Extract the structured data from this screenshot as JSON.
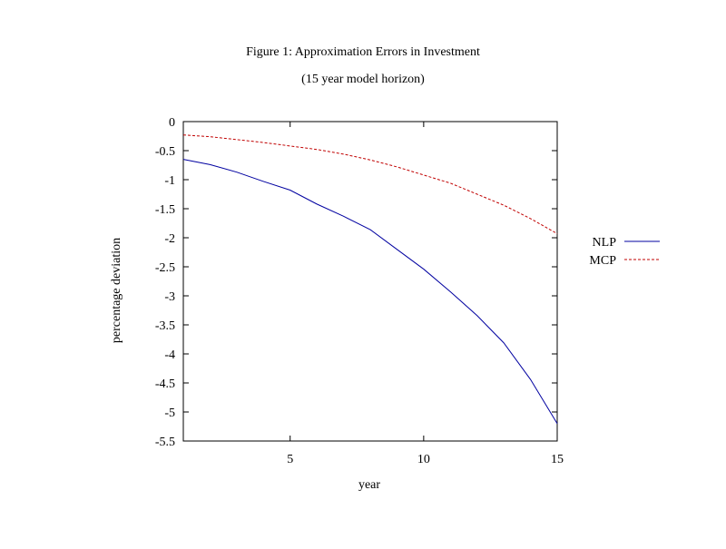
{
  "chart_data": {
    "type": "line",
    "title": "Figure 1: Approximation Errors in Investment",
    "subtitle": "(15 year model horizon)",
    "xlabel": "year",
    "ylabel": "percentage deviation",
    "xlim": [
      1,
      15
    ],
    "ylim": [
      -5.5,
      0
    ],
    "xticks": [
      5,
      10,
      15
    ],
    "yticks": [
      0,
      -0.5,
      -1,
      -1.5,
      -2,
      -2.5,
      -3,
      -3.5,
      -4,
      -4.5,
      -5,
      -5.5
    ],
    "grid": false,
    "legend_position": "right",
    "x": [
      1,
      2,
      3,
      4,
      5,
      6,
      7,
      8,
      9,
      10,
      11,
      12,
      13,
      14,
      15
    ],
    "series": [
      {
        "name": "NLP",
        "color": "#0000a0",
        "style": "solid",
        "values": [
          -0.65,
          -0.74,
          -0.87,
          -1.03,
          -1.18,
          -1.42,
          -1.63,
          -1.86,
          -2.2,
          -2.54,
          -2.93,
          -3.34,
          -3.81,
          -4.44,
          -5.2
        ]
      },
      {
        "name": "MCP",
        "color": "#c00000",
        "style": "dashed",
        "values": [
          -0.23,
          -0.26,
          -0.31,
          -0.36,
          -0.42,
          -0.48,
          -0.56,
          -0.66,
          -0.78,
          -0.92,
          -1.06,
          -1.25,
          -1.44,
          -1.67,
          -1.93
        ]
      }
    ]
  }
}
